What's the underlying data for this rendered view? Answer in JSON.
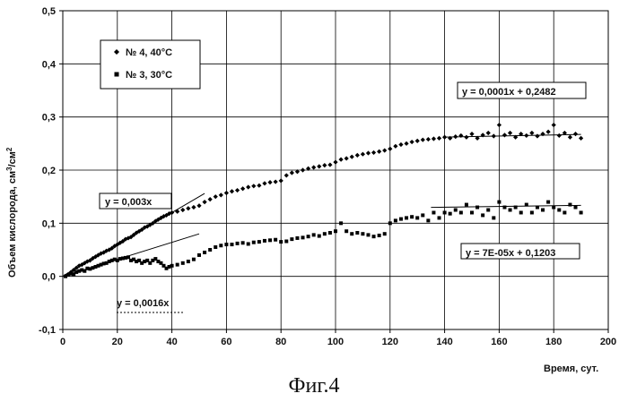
{
  "figure_caption": "Фиг.4",
  "chart_data": {
    "type": "scatter",
    "xlabel": "Время, сут.",
    "ylabel_main": "Объем кислорода, см",
    "ylabel_sup1": "3",
    "ylabel_mid": "/см",
    "ylabel_sup2": "2",
    "xlim": [
      0,
      200
    ],
    "ylim": [
      -0.1,
      0.5
    ],
    "x_ticks": [
      0,
      20,
      40,
      60,
      80,
      100,
      120,
      140,
      160,
      180,
      200
    ],
    "x_tick_labels": [
      "0",
      "20",
      "40",
      "60",
      "80",
      "100",
      "120",
      "140",
      "160",
      "180",
      "200"
    ],
    "y_ticks": [
      -0.1,
      0.0,
      0.1,
      0.2,
      0.3,
      0.4,
      0.5
    ],
    "y_tick_labels": [
      "-0,1",
      "0,0",
      "0,1",
      "0,2",
      "0,3",
      "0,4",
      "0,5"
    ],
    "grid": true,
    "legend_position": "top-left",
    "series": [
      {
        "name": "№ 4, 40°C",
        "marker": "diamond",
        "points": [
          [
            1,
            0.001
          ],
          [
            2,
            0.004
          ],
          [
            3,
            0.008
          ],
          [
            4,
            0.012
          ],
          [
            5,
            0.016
          ],
          [
            6,
            0.02
          ],
          [
            7,
            0.022
          ],
          [
            8,
            0.025
          ],
          [
            9,
            0.028
          ],
          [
            10,
            0.03
          ],
          [
            11,
            0.034
          ],
          [
            12,
            0.037
          ],
          [
            13,
            0.04
          ],
          [
            14,
            0.043
          ],
          [
            15,
            0.045
          ],
          [
            16,
            0.048
          ],
          [
            17,
            0.05
          ],
          [
            18,
            0.053
          ],
          [
            19,
            0.057
          ],
          [
            20,
            0.06
          ],
          [
            21,
            0.063
          ],
          [
            22,
            0.066
          ],
          [
            23,
            0.07
          ],
          [
            24,
            0.072
          ],
          [
            25,
            0.074
          ],
          [
            26,
            0.078
          ],
          [
            27,
            0.082
          ],
          [
            28,
            0.085
          ],
          [
            29,
            0.088
          ],
          [
            30,
            0.092
          ],
          [
            31,
            0.094
          ],
          [
            32,
            0.097
          ],
          [
            33,
            0.1
          ],
          [
            34,
            0.104
          ],
          [
            35,
            0.107
          ],
          [
            36,
            0.11
          ],
          [
            37,
            0.113
          ],
          [
            38,
            0.115
          ],
          [
            39,
            0.118
          ],
          [
            40,
            0.12
          ],
          [
            42,
            0.122
          ],
          [
            44,
            0.125
          ],
          [
            46,
            0.128
          ],
          [
            48,
            0.13
          ],
          [
            50,
            0.133
          ],
          [
            52,
            0.14
          ],
          [
            54,
            0.145
          ],
          [
            56,
            0.15
          ],
          [
            58,
            0.153
          ],
          [
            60,
            0.157
          ],
          [
            62,
            0.16
          ],
          [
            64,
            0.162
          ],
          [
            66,
            0.165
          ],
          [
            68,
            0.168
          ],
          [
            70,
            0.17
          ],
          [
            72,
            0.171
          ],
          [
            74,
            0.175
          ],
          [
            76,
            0.177
          ],
          [
            78,
            0.178
          ],
          [
            80,
            0.18
          ],
          [
            82,
            0.19
          ],
          [
            84,
            0.195
          ],
          [
            86,
            0.197
          ],
          [
            88,
            0.2
          ],
          [
            90,
            0.203
          ],
          [
            92,
            0.205
          ],
          [
            94,
            0.207
          ],
          [
            96,
            0.209
          ],
          [
            98,
            0.21
          ],
          [
            100,
            0.215
          ],
          [
            102,
            0.22
          ],
          [
            104,
            0.222
          ],
          [
            106,
            0.225
          ],
          [
            108,
            0.228
          ],
          [
            110,
            0.23
          ],
          [
            112,
            0.232
          ],
          [
            114,
            0.233
          ],
          [
            116,
            0.235
          ],
          [
            118,
            0.237
          ],
          [
            120,
            0.24
          ],
          [
            122,
            0.245
          ],
          [
            124,
            0.248
          ],
          [
            126,
            0.25
          ],
          [
            128,
            0.253
          ],
          [
            130,
            0.255
          ],
          [
            132,
            0.257
          ],
          [
            134,
            0.258
          ],
          [
            136,
            0.259
          ],
          [
            138,
            0.26
          ],
          [
            140,
            0.262
          ],
          [
            142,
            0.26
          ],
          [
            144,
            0.263
          ],
          [
            146,
            0.265
          ],
          [
            148,
            0.262
          ],
          [
            150,
            0.268
          ],
          [
            152,
            0.26
          ],
          [
            154,
            0.266
          ],
          [
            156,
            0.27
          ],
          [
            158,
            0.264
          ],
          [
            160,
            0.285
          ],
          [
            162,
            0.266
          ],
          [
            164,
            0.27
          ],
          [
            166,
            0.262
          ],
          [
            168,
            0.268
          ],
          [
            170,
            0.265
          ],
          [
            172,
            0.27
          ],
          [
            174,
            0.264
          ],
          [
            176,
            0.268
          ],
          [
            178,
            0.272
          ],
          [
            180,
            0.285
          ],
          [
            182,
            0.265
          ],
          [
            184,
            0.27
          ],
          [
            186,
            0.262
          ],
          [
            188,
            0.268
          ],
          [
            190,
            0.26
          ]
        ]
      },
      {
        "name": "№ 3, 30°C",
        "marker": "square",
        "points": [
          [
            1,
            0.0
          ],
          [
            2,
            0.003
          ],
          [
            3,
            0.005
          ],
          [
            4,
            0.004
          ],
          [
            5,
            0.008
          ],
          [
            6,
            0.01
          ],
          [
            7,
            0.012
          ],
          [
            8,
            0.01
          ],
          [
            9,
            0.015
          ],
          [
            10,
            0.014
          ],
          [
            11,
            0.016
          ],
          [
            12,
            0.018
          ],
          [
            13,
            0.02
          ],
          [
            14,
            0.022
          ],
          [
            15,
            0.024
          ],
          [
            16,
            0.025
          ],
          [
            17,
            0.028
          ],
          [
            18,
            0.03
          ],
          [
            19,
            0.032
          ],
          [
            20,
            0.03
          ],
          [
            21,
            0.033
          ],
          [
            22,
            0.034
          ],
          [
            23,
            0.035
          ],
          [
            24,
            0.036
          ],
          [
            25,
            0.03
          ],
          [
            26,
            0.032
          ],
          [
            27,
            0.028
          ],
          [
            28,
            0.03
          ],
          [
            29,
            0.025
          ],
          [
            30,
            0.028
          ],
          [
            31,
            0.03
          ],
          [
            32,
            0.025
          ],
          [
            33,
            0.03
          ],
          [
            34,
            0.033
          ],
          [
            35,
            0.028
          ],
          [
            36,
            0.025
          ],
          [
            37,
            0.02
          ],
          [
            38,
            0.015
          ],
          [
            39,
            0.018
          ],
          [
            40,
            0.02
          ],
          [
            42,
            0.022
          ],
          [
            44,
            0.025
          ],
          [
            46,
            0.028
          ],
          [
            48,
            0.032
          ],
          [
            50,
            0.04
          ],
          [
            52,
            0.045
          ],
          [
            54,
            0.05
          ],
          [
            56,
            0.055
          ],
          [
            58,
            0.058
          ],
          [
            60,
            0.06
          ],
          [
            62,
            0.06
          ],
          [
            64,
            0.062
          ],
          [
            66,
            0.063
          ],
          [
            68,
            0.061
          ],
          [
            70,
            0.064
          ],
          [
            72,
            0.065
          ],
          [
            74,
            0.067
          ],
          [
            76,
            0.068
          ],
          [
            78,
            0.069
          ],
          [
            80,
            0.065
          ],
          [
            82,
            0.066
          ],
          [
            84,
            0.07
          ],
          [
            86,
            0.072
          ],
          [
            88,
            0.073
          ],
          [
            90,
            0.075
          ],
          [
            92,
            0.078
          ],
          [
            94,
            0.076
          ],
          [
            96,
            0.08
          ],
          [
            98,
            0.082
          ],
          [
            100,
            0.085
          ],
          [
            102,
            0.1
          ],
          [
            104,
            0.085
          ],
          [
            106,
            0.08
          ],
          [
            108,
            0.082
          ],
          [
            110,
            0.08
          ],
          [
            112,
            0.078
          ],
          [
            114,
            0.075
          ],
          [
            116,
            0.077
          ],
          [
            118,
            0.08
          ],
          [
            120,
            0.1
          ],
          [
            122,
            0.105
          ],
          [
            124,
            0.108
          ],
          [
            126,
            0.11
          ],
          [
            128,
            0.112
          ],
          [
            130,
            0.11
          ],
          [
            132,
            0.115
          ],
          [
            134,
            0.105
          ],
          [
            136,
            0.12
          ],
          [
            138,
            0.11
          ],
          [
            140,
            0.12
          ],
          [
            142,
            0.118
          ],
          [
            144,
            0.125
          ],
          [
            146,
            0.12
          ],
          [
            148,
            0.135
          ],
          [
            150,
            0.12
          ],
          [
            152,
            0.13
          ],
          [
            154,
            0.115
          ],
          [
            156,
            0.125
          ],
          [
            158,
            0.11
          ],
          [
            160,
            0.14
          ],
          [
            162,
            0.13
          ],
          [
            164,
            0.125
          ],
          [
            166,
            0.13
          ],
          [
            168,
            0.12
          ],
          [
            170,
            0.135
          ],
          [
            172,
            0.12
          ],
          [
            174,
            0.13
          ],
          [
            176,
            0.125
          ],
          [
            178,
            0.14
          ],
          [
            180,
            0.13
          ],
          [
            182,
            0.125
          ],
          [
            184,
            0.12
          ],
          [
            186,
            0.135
          ],
          [
            188,
            0.13
          ],
          [
            190,
            0.12
          ]
        ]
      }
    ],
    "trendlines": [
      {
        "label": "y = 0,003x",
        "x": [
          0,
          52
        ],
        "y": [
          0.0,
          0.156
        ]
      },
      {
        "label": "y = 0,0016x",
        "x": [
          0,
          50
        ],
        "y": [
          0.0,
          0.08
        ]
      },
      {
        "label": "y = 0,0001x + 0,2482",
        "x": [
          140,
          190
        ],
        "y": [
          0.2622,
          0.2672
        ]
      },
      {
        "label": "y = 7E-05x + 0,1203",
        "x": [
          135,
          190
        ],
        "y": [
          0.1298,
          0.1336
        ]
      }
    ]
  }
}
